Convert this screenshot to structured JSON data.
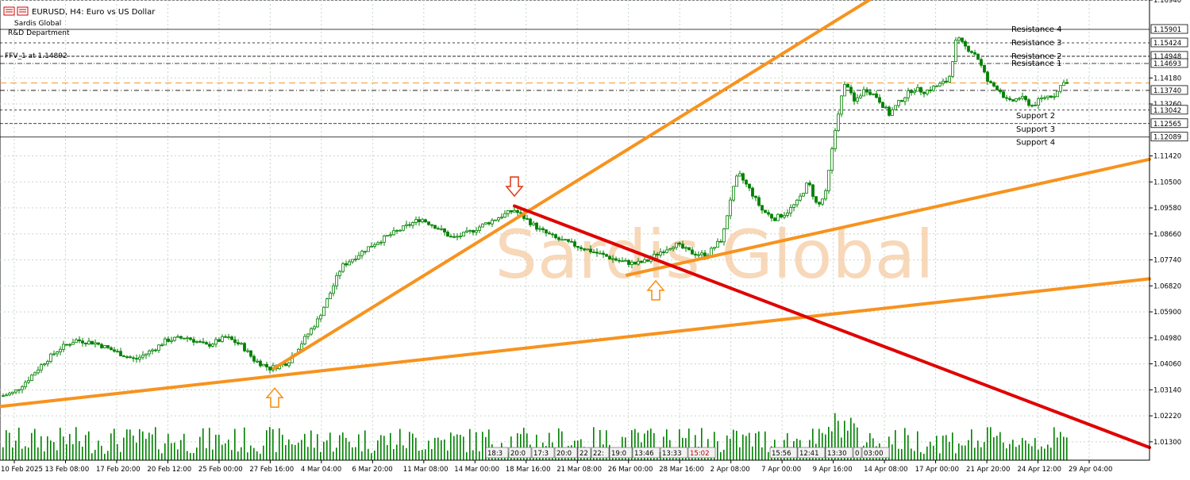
{
  "header": {
    "symbol_line": "EURUSD, H4:  Euro vs US Dollar",
    "company": "Sardis Global",
    "department": "R&D Department",
    "ffv_label": "FFV_1 at 1.14892"
  },
  "watermark": "Sardis Global",
  "colors": {
    "candle": "#008000",
    "trendline": "#f7931e",
    "downtrend": "#e00000",
    "grid": "#c8d6c8",
    "level_line": "#000000",
    "dashed_orange": "#f7931e",
    "watermark": "#f6cfa8"
  },
  "chart_data": {
    "type": "candlestick",
    "symbol": "EURUSD",
    "timeframe": "H4",
    "ylim": [
      1.0065,
      1.1694
    ],
    "price_axis_ticks": [
      "1.16940",
      "1.14180",
      "1.13260",
      "1.11420",
      "1.10500",
      "1.09580",
      "1.08660",
      "1.07740",
      "1.06820",
      "1.05900",
      "1.04980",
      "1.04060",
      "1.03140",
      "1.02220",
      "1.01300"
    ],
    "price_axis_tick_values": [
      1.1694,
      1.1418,
      1.1326,
      1.1142,
      1.105,
      1.0958,
      1.0866,
      1.0774,
      1.0682,
      1.059,
      1.0498,
      1.0406,
      1.0314,
      1.0222,
      1.013
    ],
    "time_axis_labels": [
      "10 Feb 2025",
      "13 Feb 08:00",
      "17 Feb 20:00",
      "20 Feb 12:00",
      "25 Feb 00:00",
      "27 Feb 16:00",
      "4 Mar 04:00",
      "6 Mar 20:00",
      "11 Mar 08:00",
      "14 Mar 00:00",
      "18 Mar 16:00",
      "21 Mar 08:00",
      "26 Mar 00:00",
      "28 Mar 16:00",
      "2 Apr 08:00",
      "7 Apr 00:00",
      "9 Apr 16:00",
      "14 Apr 08:00",
      "17 Apr 00:00",
      "21 Apr 20:00",
      "24 Apr 12:00",
      "29 Apr 04:00"
    ],
    "price_path": [
      [
        0,
        1.029
      ],
      [
        18,
        1.0305
      ],
      [
        35,
        1.035
      ],
      [
        55,
        1.041
      ],
      [
        75,
        1.046
      ],
      [
        95,
        1.049
      ],
      [
        120,
        1.048
      ],
      [
        145,
        1.045
      ],
      [
        170,
        1.042
      ],
      [
        195,
        1.046
      ],
      [
        210,
        1.049
      ],
      [
        235,
        1.05
      ],
      [
        260,
        1.047
      ],
      [
        285,
        1.05
      ],
      [
        305,
        1.047
      ],
      [
        320,
        1.042
      ],
      [
        340,
        1.039
      ],
      [
        362,
        1.041
      ],
      [
        380,
        1.048
      ],
      [
        400,
        1.056
      ],
      [
        415,
        1.065
      ],
      [
        430,
        1.075
      ],
      [
        450,
        1.079
      ],
      [
        470,
        1.083
      ],
      [
        490,
        1.086
      ],
      [
        510,
        1.089
      ],
      [
        530,
        1.092
      ],
      [
        550,
        1.089
      ],
      [
        570,
        1.085
      ],
      [
        590,
        1.087
      ],
      [
        610,
        1.09
      ],
      [
        632,
        1.093
      ],
      [
        648,
        1.095
      ],
      [
        662,
        1.092
      ],
      [
        680,
        1.088
      ],
      [
        700,
        1.085
      ],
      [
        720,
        1.083
      ],
      [
        740,
        1.081
      ],
      [
        760,
        1.079
      ],
      [
        780,
        1.077
      ],
      [
        800,
        1.076
      ],
      [
        815,
        1.077
      ],
      [
        830,
        1.08
      ],
      [
        850,
        1.083
      ],
      [
        870,
        1.08
      ],
      [
        890,
        1.079
      ],
      [
        910,
        1.085
      ],
      [
        920,
        1.099
      ],
      [
        930,
        1.108
      ],
      [
        945,
        1.102
      ],
      [
        960,
        1.095
      ],
      [
        975,
        1.092
      ],
      [
        990,
        1.094
      ],
      [
        1005,
        1.098
      ],
      [
        1018,
        1.105
      ],
      [
        1030,
        1.096
      ],
      [
        1040,
        1.101
      ],
      [
        1050,
        1.12
      ],
      [
        1058,
        1.133
      ],
      [
        1066,
        1.141
      ],
      [
        1075,
        1.133
      ],
      [
        1090,
        1.138
      ],
      [
        1105,
        1.135
      ],
      [
        1120,
        1.129
      ],
      [
        1135,
        1.134
      ],
      [
        1150,
        1.138
      ],
      [
        1165,
        1.137
      ],
      [
        1180,
        1.139
      ],
      [
        1195,
        1.141
      ],
      [
        1205,
        1.156
      ],
      [
        1215,
        1.153
      ],
      [
        1230,
        1.15
      ],
      [
        1245,
        1.14
      ],
      [
        1258,
        1.138
      ],
      [
        1270,
        1.133
      ],
      [
        1285,
        1.135
      ],
      [
        1300,
        1.132
      ],
      [
        1315,
        1.135
      ],
      [
        1330,
        1.136
      ],
      [
        1340,
        1.141
      ],
      [
        1346,
        1.139
      ]
    ],
    "series": [
      {
        "name": "Resistance 4",
        "type": "horizontal-level",
        "value": 1.15901
      },
      {
        "name": "Resistance 3",
        "type": "horizontal-level",
        "value": 1.15424
      },
      {
        "name": "Resistance 2",
        "type": "horizontal-level",
        "value": 1.14948
      },
      {
        "name": "Resistance 1",
        "type": "horizontal-level",
        "value": 1.14693
      },
      {
        "name": "Support 2",
        "type": "horizontal-level",
        "value": 1.13042
      },
      {
        "name": "Support 3",
        "type": "horizontal-level",
        "value": 1.12565
      },
      {
        "name": "Support 4",
        "type": "horizontal-level",
        "value": 1.12089
      }
    ],
    "level_price_labels": [
      {
        "text": "1.15901",
        "value": 1.15901
      },
      {
        "text": "1.15424",
        "value": 1.15424
      },
      {
        "text": "1.14948",
        "value": 1.14948
      },
      {
        "text": "1.14693",
        "value": 1.14693
      },
      {
        "text": "1.13740",
        "value": 1.1374
      },
      {
        "text": "1.13042",
        "value": 1.13042
      },
      {
        "text": "1.12565",
        "value": 1.12565
      },
      {
        "text": "1.12089",
        "value": 1.12089
      }
    ],
    "dashed_level": 1.14,
    "pivot_level": 1.1374,
    "trendlines": [
      {
        "color": "trendline",
        "from": [
          0,
          1.0255
        ],
        "to": [
          1448,
          1.0707
        ]
      },
      {
        "color": "trendline",
        "from": [
          345,
          1.039
        ],
        "to": [
          1095,
          1.1694
        ]
      },
      {
        "color": "trendline",
        "from": [
          790,
          1.072
        ],
        "to": [
          1448,
          1.113
        ]
      },
      {
        "color": "downtrend",
        "from": [
          648,
          1.0965
        ],
        "to": [
          1448,
          1.011
        ]
      }
    ],
    "arrows": [
      {
        "type": "down",
        "x": 648,
        "price": 1.1
      },
      {
        "type": "up",
        "x": 346,
        "price": 1.032
      },
      {
        "type": "up",
        "x": 826,
        "price": 1.07
      }
    ],
    "session_boxes": [
      {
        "x": 612,
        "texts": [
          "18:3",
          "20:0",
          "17:3",
          "20:0",
          "22",
          "22:",
          "19:0",
          "13:46",
          "13:33",
          "15:02"
        ]
      },
      {
        "x": 970,
        "texts": [
          "15:56",
          "12:41",
          "13:30",
          "0",
          "03:00"
        ]
      }
    ],
    "grid": true,
    "volume": true
  }
}
